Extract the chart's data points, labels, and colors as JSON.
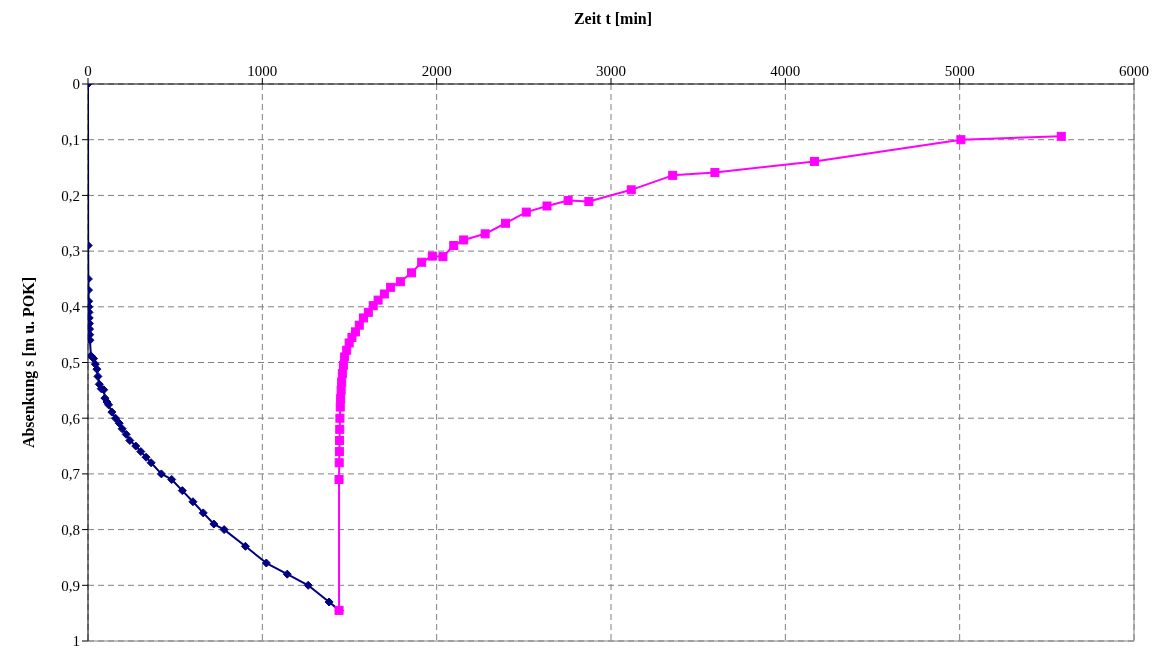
{
  "chart_data": {
    "type": "line",
    "xlabel": "Zeit t [min]",
    "ylabel": "Absenkung s [m u. POK]",
    "xlim": [
      0,
      6000
    ],
    "xticks": [
      0,
      1000,
      2000,
      3000,
      4000,
      5000,
      6000
    ],
    "ylim": [
      1,
      0
    ],
    "yticks": [
      {
        "value": 0,
        "label": "0"
      },
      {
        "value": 0.1,
        "label": "0,1"
      },
      {
        "value": 0.2,
        "label": "0,2"
      },
      {
        "value": 0.3,
        "label": "0,3"
      },
      {
        "value": 0.4,
        "label": "0,4"
      },
      {
        "value": 0.5,
        "label": "0,5"
      },
      {
        "value": 0.6,
        "label": "0,6"
      },
      {
        "value": 0.7,
        "label": "0,7"
      },
      {
        "value": 0.8,
        "label": "0,8"
      },
      {
        "value": 0.9,
        "label": "0,9"
      },
      {
        "value": 1,
        "label": "1"
      }
    ],
    "grid": true,
    "line_style": "solid",
    "series": [
      {
        "color": "#000080",
        "marker": "diamond",
        "x": [
          0,
          1,
          2,
          3,
          4,
          5,
          6,
          7,
          8,
          9,
          10,
          11,
          17,
          32,
          42,
          51,
          57,
          65,
          76,
          90,
          97,
          109,
          118,
          137,
          158,
          179,
          196,
          219,
          240,
          274,
          303,
          333,
          362,
          421,
          480,
          541,
          602,
          661,
          722,
          781,
          903,
          1023,
          1143,
          1263,
          1383,
          1442
        ],
        "values": [
          0,
          0.29,
          0.35,
          0.37,
          0.39,
          0.4,
          0.41,
          0.42,
          0.43,
          0.44,
          0.45,
          0.46,
          0.488,
          0.493,
          0.503,
          0.512,
          0.525,
          0.539,
          0.547,
          0.549,
          0.564,
          0.571,
          0.576,
          0.589,
          0.6,
          0.609,
          0.619,
          0.629,
          0.64,
          0.65,
          0.66,
          0.67,
          0.68,
          0.7,
          0.71,
          0.73,
          0.75,
          0.77,
          0.79,
          0.8,
          0.83,
          0.86,
          0.88,
          0.9,
          0.93,
          0.945
        ]
      },
      {
        "color": "#ff00ff",
        "marker": "square",
        "x": [
          1440,
          1440,
          1441,
          1442,
          1443,
          1444,
          1445,
          1447,
          1449,
          1452,
          1455,
          1459,
          1465,
          1472,
          1484,
          1498,
          1514,
          1534,
          1556,
          1580,
          1608,
          1636,
          1664,
          1700,
          1736,
          1792,
          1856,
          1914,
          1975,
          2036,
          2098,
          2155,
          2278,
          2395,
          2514,
          2633,
          2754,
          2873,
          3116,
          3354,
          3596,
          4167,
          5007,
          5583
        ],
        "values": [
          0.945,
          0.71,
          0.68,
          0.66,
          0.64,
          0.62,
          0.6,
          0.58,
          0.565,
          0.55,
          0.535,
          0.52,
          0.505,
          0.49,
          0.478,
          0.465,
          0.455,
          0.445,
          0.433,
          0.42,
          0.41,
          0.398,
          0.388,
          0.377,
          0.365,
          0.355,
          0.339,
          0.32,
          0.309,
          0.31,
          0.29,
          0.28,
          0.269,
          0.25,
          0.23,
          0.219,
          0.209,
          0.211,
          0.19,
          0.164,
          0.159,
          0.139,
          0.1,
          0.094
        ]
      }
    ]
  }
}
